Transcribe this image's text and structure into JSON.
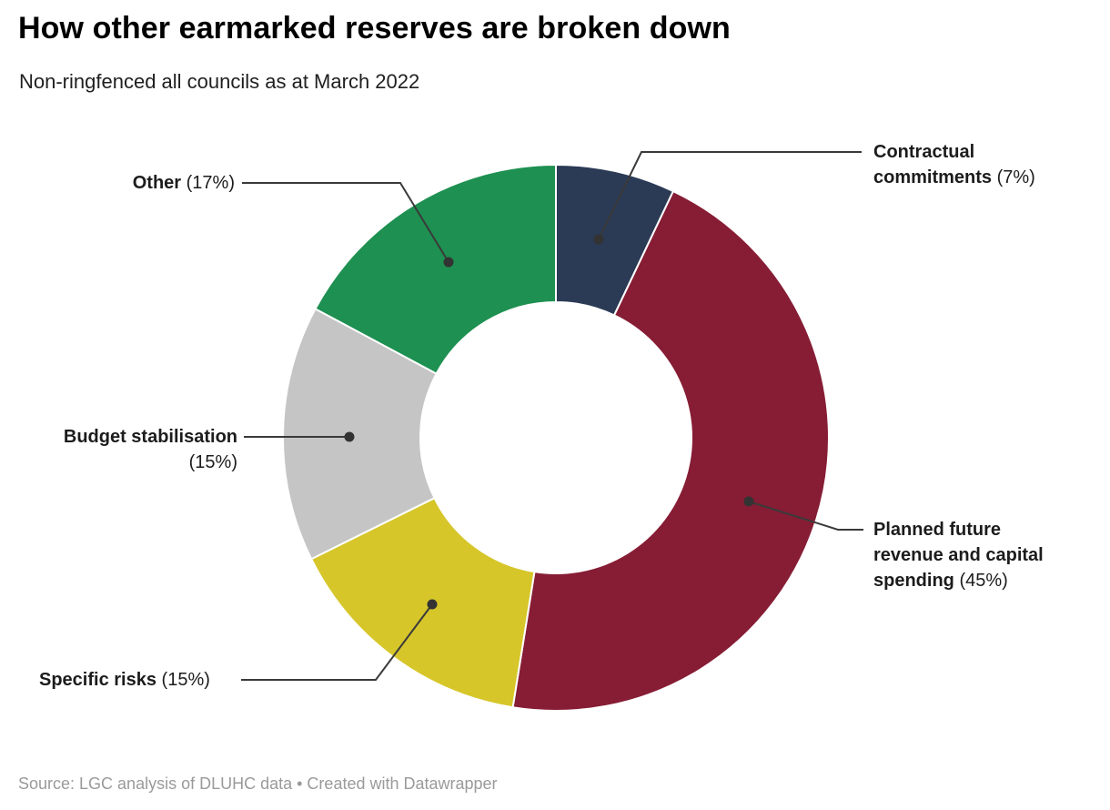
{
  "header": {
    "title": "How other earmarked reserves are broken down",
    "subtitle": "Non-ringfenced all councils as at March 2022"
  },
  "footer": {
    "source_text": "Source: LGC analysis of DLUHC data • Created with Datawrapper"
  },
  "chart_data": {
    "type": "pie",
    "variant": "donut",
    "title": "How other earmarked reserves are broken down",
    "subtitle": "Non-ringfenced all councils as at March 2022",
    "direction": "clockwise",
    "start_angle_deg": 0,
    "inner_radius_ratio": 0.5,
    "legend_position": "callout-labels",
    "connector_color": "#3a3a3a",
    "separator_color": "#ffffff",
    "slices": [
      {
        "label": "Contractual commitments",
        "value": 7,
        "pct_text": "(7%)",
        "color": "#2b3a55"
      },
      {
        "label": "Planned future revenue and capital spending",
        "value": 45,
        "pct_text": "(45%)",
        "color": "#861d35"
      },
      {
        "label": "Specific risks",
        "value": 15,
        "pct_text": "(15%)",
        "color": "#d6c62a"
      },
      {
        "label": "Budget stabilisation",
        "value": 15,
        "pct_text": "(15%)",
        "color": "#c5c5c5"
      },
      {
        "label": "Other",
        "value": 17,
        "pct_text": "(17%)",
        "color": "#1e9051"
      }
    ]
  }
}
